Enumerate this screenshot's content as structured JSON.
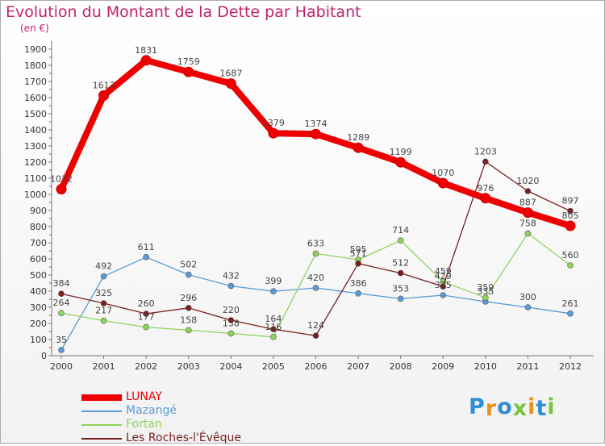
{
  "title": "Evolution du Montant de la Dette par Habitant",
  "subtitle": "(en €)",
  "logo": {
    "text": "Proxiti",
    "colors": [
      "#2f8fd5",
      "#e8941c",
      "#2f8fd5",
      "#7cc242",
      "#e8941c",
      "#2f8fd5",
      "#7cc242"
    ]
  },
  "chart_data": {
    "type": "line",
    "x": [
      "2000",
      "2001",
      "2002",
      "2003",
      "2004",
      "2005",
      "2006",
      "2007",
      "2008",
      "2009",
      "2010",
      "2011",
      "2012"
    ],
    "ylim": [
      0,
      1900
    ],
    "yticks": [
      0,
      100,
      200,
      300,
      400,
      500,
      600,
      700,
      800,
      900,
      1000,
      1100,
      1200,
      1300,
      1400,
      1500,
      1600,
      1700,
      1800,
      1900
    ],
    "grid": false,
    "legend_position": "bottom-left",
    "series": [
      {
        "name": "LUNAY",
        "color": "#ee0000",
        "highlight": true,
        "values": [
          1032,
          1613,
          1831,
          1759,
          1687,
          1379,
          1374,
          1289,
          1199,
          1070,
          976,
          887,
          805
        ]
      },
      {
        "name": "Mazangé",
        "color": "#5b9bd5",
        "values": [
          35,
          492,
          611,
          502,
          432,
          399,
          420,
          386,
          353,
          375,
          335,
          300,
          261
        ]
      },
      {
        "name": "Fortan",
        "color": "#8fd45b",
        "values": [
          264,
          217,
          177,
          158,
          138,
          116,
          633,
          595,
          714,
          459,
          359,
          758,
          560
        ]
      },
      {
        "name": "Les Roches-l'Évêque",
        "color": "#7a1f1f",
        "values": [
          384,
          325,
          260,
          296,
          220,
          164,
          124,
          571,
          512,
          429,
          1203,
          1020,
          897
        ]
      }
    ]
  }
}
